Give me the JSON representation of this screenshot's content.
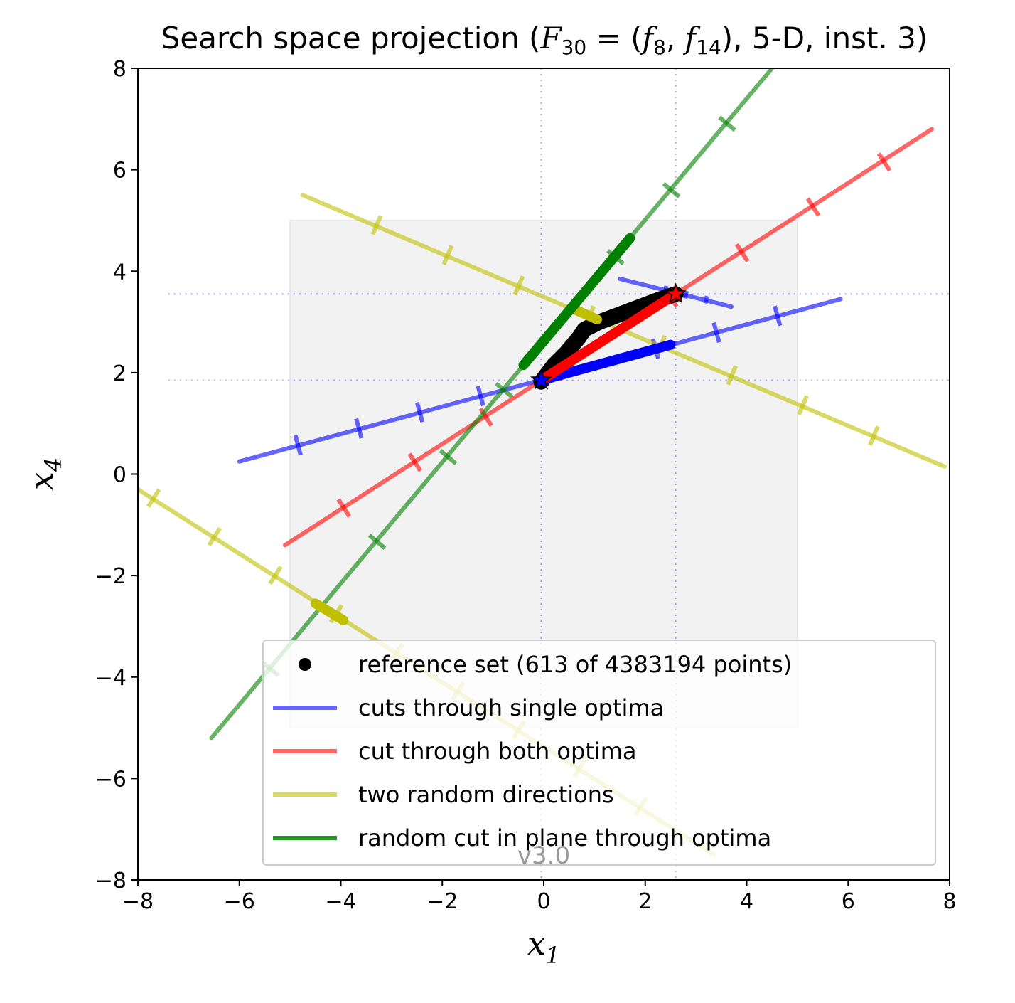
{
  "chart_data": {
    "type": "line",
    "title": "Search space projection (F30 = (f8, f14), 5-D, inst. 3)",
    "title_parts": {
      "prefix": "Search space projection (",
      "F": "F",
      "F_sub": "30",
      "eq": " = (",
      "f": "f",
      "f1_sub": "8",
      "comma": ", ",
      "f2_sub": "14",
      "suffix": "), 5-D, inst. 3)"
    },
    "xlabel": "x1",
    "xlabel_parts": {
      "var": "x",
      "sub": "1"
    },
    "ylabel": "x4",
    "ylabel_parts": {
      "var": "x",
      "sub": "4"
    },
    "xlim": [
      -8,
      8
    ],
    "ylim": [
      -8,
      8
    ],
    "xticks": [
      -8,
      -6,
      -4,
      -2,
      0,
      2,
      4,
      6,
      8
    ],
    "yticks": [
      -8,
      -6,
      -4,
      -2,
      0,
      2,
      4,
      6,
      8
    ],
    "xtick_labels": [
      "−8",
      "−6",
      "−4",
      "−2",
      "0",
      "2",
      "4",
      "6",
      "8"
    ],
    "ytick_labels": [
      "−8",
      "−6",
      "−4",
      "−2",
      "0",
      "2",
      "4",
      "6",
      "8"
    ],
    "grid": false,
    "legend_position": "lower-right",
    "watermark": "v3.0",
    "colors": {
      "blue": "#0000ff",
      "red": "#ff0000",
      "yellow": "#bfbf00",
      "green": "#008000",
      "black": "#000000",
      "box": "#f2f2f2"
    },
    "search_box": {
      "x": [
        -5,
        5
      ],
      "y": [
        -5,
        5
      ]
    },
    "optima": [
      {
        "x1": -0.05,
        "x4": 1.85,
        "marker": "star",
        "color": "#0000ff"
      },
      {
        "x1": 2.6,
        "x4": 3.55,
        "marker": "star",
        "color": "#ff0000"
      }
    ],
    "guide_lines": {
      "x": [
        -0.05,
        2.6
      ],
      "y": [
        1.85,
        3.55
      ]
    },
    "series": [
      {
        "name": "reference set (613 of 4383194 points)",
        "kind": "scatter",
        "color": "#000000",
        "points": [
          [
            -0.05,
            1.82
          ],
          [
            0.2,
            2.15
          ],
          [
            0.45,
            2.4
          ],
          [
            0.7,
            2.7
          ],
          [
            0.8,
            2.85
          ],
          [
            1.1,
            3.0
          ],
          [
            1.5,
            3.15
          ],
          [
            1.9,
            3.3
          ],
          [
            2.3,
            3.45
          ],
          [
            2.6,
            3.55
          ]
        ]
      },
      {
        "name": "cuts through single optima",
        "kind": "lines",
        "color": "#0000ff",
        "lines": [
          {
            "from": [
              -6.0,
              0.25
            ],
            "to": [
              5.85,
              3.45
            ]
          },
          {
            "from": [
              1.5,
              3.85
            ],
            "to": [
              3.7,
              3.3
            ]
          }
        ],
        "ticks": [
          {
            "at": [
              -4.85,
              0.59
            ],
            "len": 0.4
          },
          {
            "at": [
              -3.65,
              0.92
            ],
            "len": 0.4
          },
          {
            "at": [
              -2.45,
              1.24
            ],
            "len": 0.4
          },
          {
            "at": [
              -1.25,
              1.56
            ],
            "len": 0.4
          },
          {
            "at": [
              2.2,
              2.49
            ],
            "len": 0.4
          },
          {
            "at": [
              3.4,
              2.81
            ],
            "len": 0.4
          },
          {
            "at": [
              4.6,
              3.14
            ],
            "len": 0.4
          },
          {
            "at": [
              2.4,
              3.63
            ],
            "len": 0.15
          },
          {
            "at": [
              2.8,
              3.53
            ],
            "len": 0.15
          },
          {
            "at": [
              3.2,
              3.43
            ],
            "len": 0.15
          }
        ],
        "thick": {
          "from": [
            -0.05,
            1.85
          ],
          "to": [
            2.5,
            2.55
          ]
        }
      },
      {
        "name": "cut through both optima",
        "kind": "lines",
        "color": "#ff0000",
        "lines": [
          {
            "from": [
              -5.1,
              -1.4
            ],
            "to": [
              7.65,
              6.8
            ]
          }
        ],
        "ticks": [
          {
            "at": [
              -3.95,
              -0.65
            ],
            "len": 0.4
          },
          {
            "at": [
              -2.55,
              0.25
            ],
            "len": 0.4
          },
          {
            "at": [
              -1.15,
              1.14
            ],
            "len": 0.4
          },
          {
            "at": [
              0.25,
              2.04
            ],
            "len": 0.4
          },
          {
            "at": [
              2.5,
              3.49
            ],
            "len": 0.4
          },
          {
            "at": [
              3.9,
              4.38
            ],
            "len": 0.4
          },
          {
            "at": [
              5.3,
              5.28
            ],
            "len": 0.4
          },
          {
            "at": [
              6.7,
              6.17
            ],
            "len": 0.4
          }
        ],
        "thick": {
          "from": [
            -0.05,
            1.85
          ],
          "to": [
            2.6,
            3.55
          ]
        }
      },
      {
        "name": "two random directions",
        "kind": "lines",
        "color": "#bfbf00",
        "lines": [
          {
            "from": [
              -4.75,
              5.5
            ],
            "to": [
              7.9,
              0.15
            ]
          },
          {
            "from": [
              -8.0,
              -0.3
            ],
            "to": [
              3.35,
              -7.5
            ]
          }
        ],
        "ticks": [
          {
            "at": [
              -3.3,
              4.89
            ],
            "len": 0.4
          },
          {
            "at": [
              -1.9,
              4.3
            ],
            "len": 0.4
          },
          {
            "at": [
              -0.5,
              3.7
            ],
            "len": 0.4
          },
          {
            "at": [
              0.9,
              3.11
            ],
            "len": 0.4
          },
          {
            "at": [
              2.3,
              2.52
            ],
            "len": 0.4
          },
          {
            "at": [
              3.7,
              1.93
            ],
            "len": 0.4
          },
          {
            "at": [
              5.1,
              1.34
            ],
            "len": 0.4
          },
          {
            "at": [
              6.5,
              0.74
            ],
            "len": 0.4
          },
          {
            "at": [
              -7.7,
              -0.49
            ],
            "len": 0.4
          },
          {
            "at": [
              -6.5,
              -1.25
            ],
            "len": 0.4
          },
          {
            "at": [
              -5.3,
              -2.01
            ],
            "len": 0.4
          },
          {
            "at": [
              -4.1,
              -2.77
            ],
            "len": 0.4
          },
          {
            "at": [
              -2.9,
              -3.53
            ],
            "len": 0.4
          },
          {
            "at": [
              -1.7,
              -4.29
            ],
            "len": 0.4
          },
          {
            "at": [
              -0.5,
              -5.05
            ],
            "len": 0.4
          },
          {
            "at": [
              0.7,
              -5.81
            ],
            "len": 0.4
          },
          {
            "at": [
              1.9,
              -6.57
            ],
            "len": 0.4
          }
        ],
        "thick_segments": [
          {
            "from": [
              0.6,
              3.25
            ],
            "to": [
              1.05,
              3.05
            ]
          },
          {
            "from": [
              -4.5,
              -2.55
            ],
            "to": [
              -3.95,
              -2.88
            ]
          }
        ]
      },
      {
        "name": "random cut in plane through optima",
        "kind": "lines",
        "color": "#008000",
        "lines": [
          {
            "from": [
              -6.55,
              -5.2
            ],
            "to": [
              4.5,
              8.0
            ]
          }
        ],
        "ticks": [
          {
            "at": [
              -5.4,
              -3.83
            ],
            "len": 0.4
          },
          {
            "at": [
              -3.3,
              -1.32
            ],
            "len": 0.4
          },
          {
            "at": [
              -1.9,
              0.35
            ],
            "len": 0.4
          },
          {
            "at": [
              -0.8,
              1.67
            ],
            "len": 0.4
          },
          {
            "at": [
              1.4,
              4.29
            ],
            "len": 0.4
          },
          {
            "at": [
              2.5,
              5.61
            ],
            "len": 0.4
          },
          {
            "at": [
              3.6,
              6.92
            ],
            "len": 0.4
          }
        ],
        "thick": {
          "from": [
            -0.4,
            2.15
          ],
          "to": [
            1.7,
            4.65
          ]
        }
      }
    ],
    "legend": [
      {
        "label": "reference set (613 of 4383194 points)",
        "marker": "dot",
        "color": "#000000"
      },
      {
        "label": "cuts through single optima",
        "marker": "line",
        "color": "#0000ff"
      },
      {
        "label": "cut through both optima",
        "marker": "line",
        "color": "#ff0000"
      },
      {
        "label": "two random directions",
        "marker": "line",
        "color": "#bfbf00"
      },
      {
        "label": "random cut in plane through optima",
        "marker": "line",
        "color": "#008000"
      }
    ]
  }
}
